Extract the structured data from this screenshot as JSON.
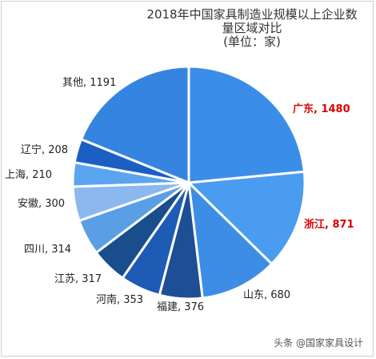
{
  "chart_data": {
    "type": "pie",
    "title": "2018年中国家具制造业规模以上企业数量区域对比",
    "subtitle": "(单位：家)",
    "slices": [
      {
        "label": "广东",
        "value": 1480,
        "color": "#3a8ee8",
        "highlight": true
      },
      {
        "label": "浙江",
        "value": 871,
        "color": "#4a9cf0",
        "highlight": true
      },
      {
        "label": "山东",
        "value": 680,
        "color": "#3d8de6",
        "highlight": false
      },
      {
        "label": "福建",
        "value": 376,
        "color": "#1e4f95",
        "highlight": false
      },
      {
        "label": "河南",
        "value": 353,
        "color": "#1d5bb5",
        "highlight": false
      },
      {
        "label": "江苏",
        "value": 317,
        "color": "#1a4d8c",
        "highlight": false
      },
      {
        "label": "四川",
        "value": 314,
        "color": "#5a9ee6",
        "highlight": false
      },
      {
        "label": "安徽",
        "value": 300,
        "color": "#8ab8ef",
        "highlight": false
      },
      {
        "label": "上海",
        "value": 210,
        "color": "#5aa4f0",
        "highlight": false
      },
      {
        "label": "辽宁",
        "value": 208,
        "color": "#1c5fc4",
        "highlight": false
      },
      {
        "label": "其他",
        "value": 1191,
        "color": "#3585e0",
        "highlight": false
      }
    ]
  },
  "watermark": "头条 @国家家具设计"
}
